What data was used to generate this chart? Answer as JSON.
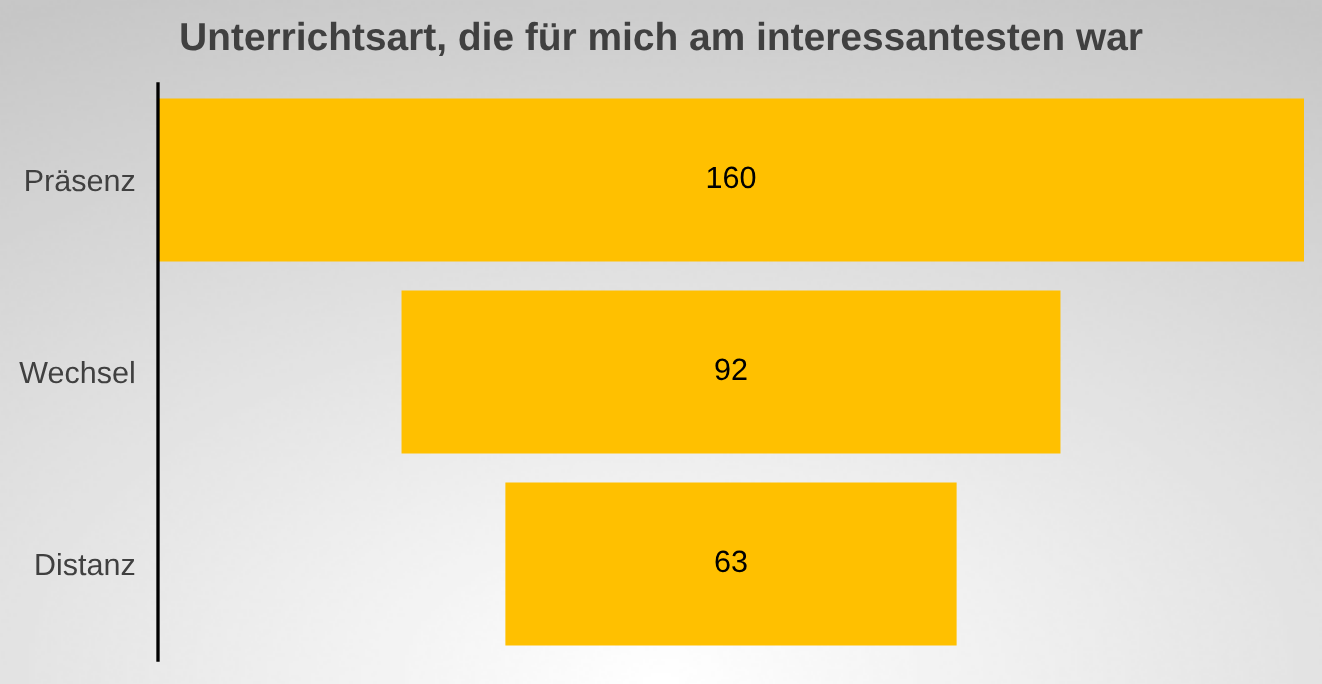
{
  "chart_data": {
    "type": "other",
    "title": "Unterrichtsart, die für mich am interessantesten war",
    "categories": [
      "Präsenz",
      "Wechsel",
      "Distanz"
    ],
    "values": [
      160,
      92,
      63
    ],
    "color": "#ffc000",
    "data_labels": true
  }
}
